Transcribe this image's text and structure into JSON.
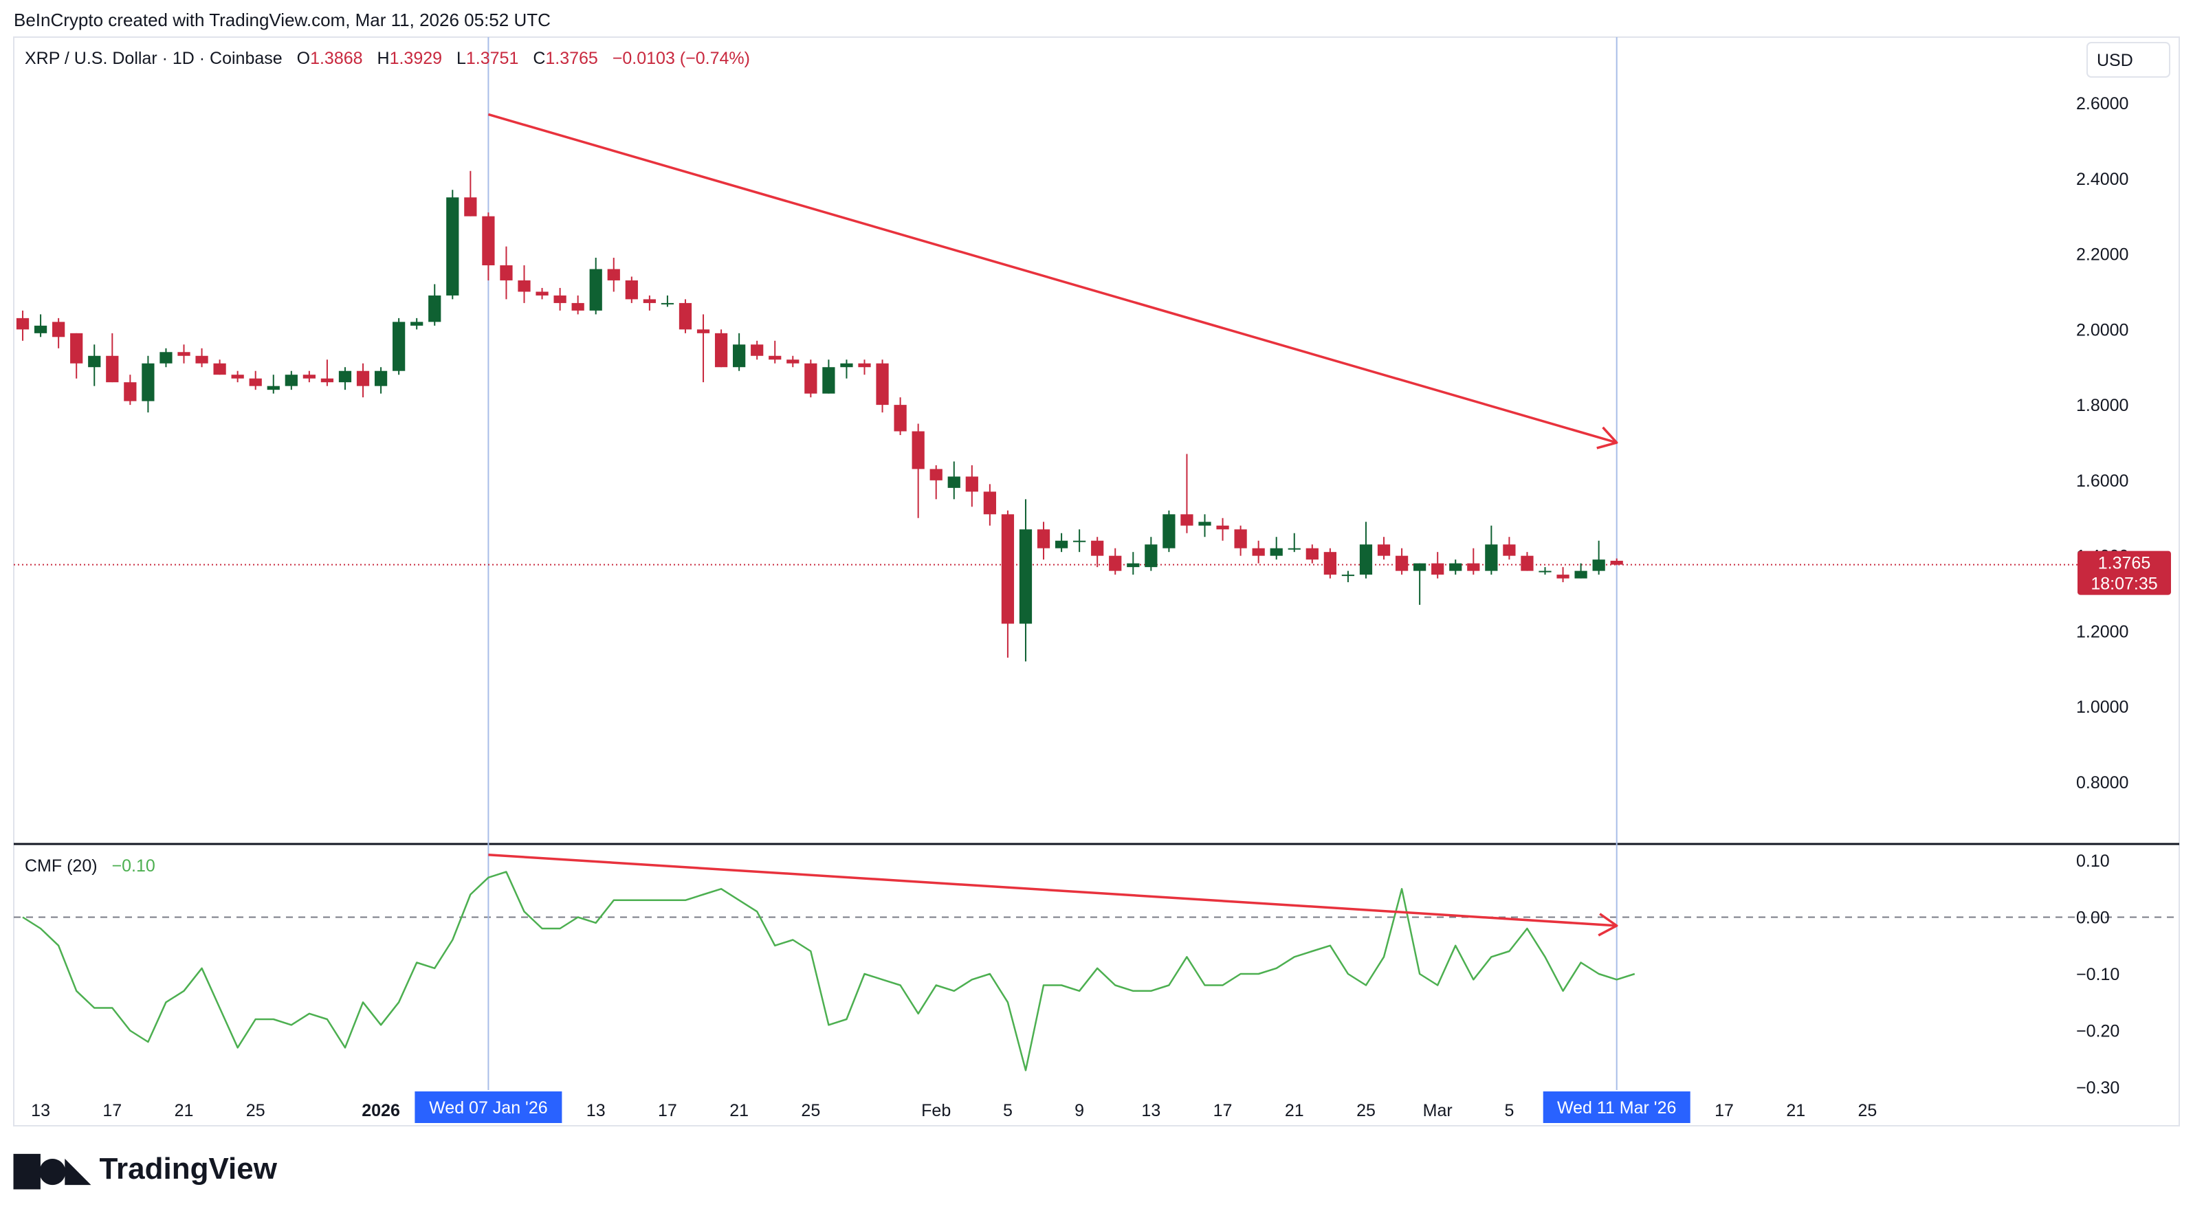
{
  "credit_line": "BeInCrypto created with TradingView.com, Mar 11, 2026 05:52 UTC",
  "brand": {
    "logo_text": "TradingView",
    "logo_icon": "tradingview-logo-icon"
  },
  "header": {
    "symbol": "XRP / U.S. Dollar · 1D · Coinbase",
    "o_label": "O",
    "o_value": "1.3868",
    "h_label": "H",
    "h_value": "1.3929",
    "l_label": "L",
    "l_value": "1.3751",
    "c_label": "C",
    "c_value": "1.3765",
    "change": "−0.0103 (−0.74%)"
  },
  "currency": "USD",
  "last_price": {
    "value": "1.3765",
    "countdown": "18:07:35"
  },
  "indicator": {
    "name": "CMF (20)",
    "value": "−0.10"
  },
  "crosshair_labels": {
    "left": "Wed 07 Jan '26",
    "right": "Wed 11 Mar '26"
  },
  "colors": {
    "up": "#0f6132",
    "down": "#c8283e",
    "trend": "#e8323d",
    "cmf": "#4caf50",
    "crosshair": "#c6d4f0",
    "date_badge": "#2962ff",
    "price_badge": "#c8283e"
  },
  "chart_data": [
    {
      "type": "candlestick",
      "title": "XRP / U.S. Dollar · 1D · Coinbase",
      "ylabel": "USD",
      "ylim": [
        0.7,
        2.7
      ],
      "y_ticks": [
        "2.6000",
        "2.4000",
        "2.2000",
        "2.0000",
        "1.8000",
        "1.6000",
        "1.4000",
        "1.2000",
        "1.0000",
        "0.8000"
      ],
      "x_ticks": [
        {
          "date": "2025-12-13",
          "label": "13"
        },
        {
          "date": "2025-12-17",
          "label": "17"
        },
        {
          "date": "2025-12-21",
          "label": "21"
        },
        {
          "date": "2025-12-25",
          "label": "25"
        },
        {
          "date": "2026-01-01",
          "label": "2026",
          "bold": true
        },
        {
          "date": "2026-01-13",
          "label": "13"
        },
        {
          "date": "2026-01-17",
          "label": "17"
        },
        {
          "date": "2026-01-21",
          "label": "21"
        },
        {
          "date": "2026-01-25",
          "label": "25"
        },
        {
          "date": "2026-02-01",
          "label": "Feb"
        },
        {
          "date": "2026-02-05",
          "label": "5"
        },
        {
          "date": "2026-02-09",
          "label": "9"
        },
        {
          "date": "2026-02-13",
          "label": "13"
        },
        {
          "date": "2026-02-17",
          "label": "17"
        },
        {
          "date": "2026-02-21",
          "label": "21"
        },
        {
          "date": "2026-02-25",
          "label": "25"
        },
        {
          "date": "2026-03-01",
          "label": "Mar"
        },
        {
          "date": "2026-03-05",
          "label": "5"
        },
        {
          "date": "2026-03-17",
          "label": "17"
        },
        {
          "date": "2026-03-21",
          "label": "21"
        },
        {
          "date": "2026-03-25",
          "label": "25"
        }
      ],
      "x_range": [
        "2025-12-12",
        "2026-04-05"
      ],
      "start_date": "2025-12-12",
      "ohlc": [
        [
          2.03,
          2.05,
          1.97,
          2.0
        ],
        [
          1.99,
          2.04,
          1.98,
          2.01
        ],
        [
          2.02,
          2.03,
          1.95,
          1.98
        ],
        [
          1.99,
          1.99,
          1.87,
          1.91
        ],
        [
          1.9,
          1.96,
          1.85,
          1.93
        ],
        [
          1.93,
          1.99,
          1.86,
          1.86
        ],
        [
          1.86,
          1.88,
          1.8,
          1.81
        ],
        [
          1.81,
          1.93,
          1.78,
          1.91
        ],
        [
          1.91,
          1.95,
          1.9,
          1.94
        ],
        [
          1.94,
          1.96,
          1.91,
          1.93
        ],
        [
          1.93,
          1.95,
          1.9,
          1.91
        ],
        [
          1.91,
          1.92,
          1.88,
          1.88
        ],
        [
          1.88,
          1.89,
          1.86,
          1.87
        ],
        [
          1.87,
          1.89,
          1.84,
          1.85
        ],
        [
          1.84,
          1.88,
          1.83,
          1.85
        ],
        [
          1.85,
          1.89,
          1.84,
          1.88
        ],
        [
          1.88,
          1.89,
          1.86,
          1.87
        ],
        [
          1.87,
          1.92,
          1.85,
          1.86
        ],
        [
          1.86,
          1.9,
          1.84,
          1.89
        ],
        [
          1.89,
          1.91,
          1.82,
          1.85
        ],
        [
          1.85,
          1.9,
          1.83,
          1.89
        ],
        [
          1.89,
          2.03,
          1.88,
          2.02
        ],
        [
          2.01,
          2.03,
          2.0,
          2.02
        ],
        [
          2.02,
          2.12,
          2.01,
          2.09
        ],
        [
          2.09,
          2.37,
          2.08,
          2.35
        ],
        [
          2.35,
          2.42,
          2.3,
          2.3
        ],
        [
          2.3,
          2.31,
          2.13,
          2.17
        ],
        [
          2.17,
          2.22,
          2.08,
          2.13
        ],
        [
          2.13,
          2.17,
          2.07,
          2.1
        ],
        [
          2.1,
          2.11,
          2.08,
          2.09
        ],
        [
          2.09,
          2.11,
          2.05,
          2.07
        ],
        [
          2.07,
          2.09,
          2.04,
          2.05
        ],
        [
          2.05,
          2.19,
          2.04,
          2.16
        ],
        [
          2.16,
          2.19,
          2.1,
          2.13
        ],
        [
          2.13,
          2.14,
          2.07,
          2.08
        ],
        [
          2.08,
          2.09,
          2.05,
          2.07
        ],
        [
          2.07,
          2.09,
          2.06,
          2.07
        ],
        [
          2.07,
          2.08,
          1.99,
          2.0
        ],
        [
          2.0,
          2.04,
          1.86,
          1.99
        ],
        [
          1.99,
          2.0,
          1.9,
          1.9
        ],
        [
          1.9,
          1.99,
          1.89,
          1.96
        ],
        [
          1.96,
          1.97,
          1.92,
          1.93
        ],
        [
          1.93,
          1.97,
          1.91,
          1.92
        ],
        [
          1.92,
          1.93,
          1.9,
          1.91
        ],
        [
          1.91,
          1.92,
          1.82,
          1.83
        ],
        [
          1.83,
          1.92,
          1.83,
          1.9
        ],
        [
          1.9,
          1.92,
          1.87,
          1.91
        ],
        [
          1.91,
          1.92,
          1.88,
          1.9
        ],
        [
          1.91,
          1.92,
          1.78,
          1.8
        ],
        [
          1.8,
          1.82,
          1.72,
          1.73
        ],
        [
          1.73,
          1.75,
          1.5,
          1.63
        ],
        [
          1.63,
          1.64,
          1.55,
          1.6
        ],
        [
          1.58,
          1.65,
          1.55,
          1.61
        ],
        [
          1.61,
          1.64,
          1.53,
          1.57
        ],
        [
          1.57,
          1.59,
          1.48,
          1.51
        ],
        [
          1.51,
          1.52,
          1.13,
          1.22
        ],
        [
          1.22,
          1.55,
          1.12,
          1.47
        ],
        [
          1.47,
          1.49,
          1.39,
          1.42
        ],
        [
          1.42,
          1.46,
          1.41,
          1.44
        ],
        [
          1.44,
          1.47,
          1.41,
          1.44
        ],
        [
          1.44,
          1.45,
          1.37,
          1.4
        ],
        [
          1.4,
          1.42,
          1.35,
          1.36
        ],
        [
          1.37,
          1.41,
          1.35,
          1.38
        ],
        [
          1.37,
          1.45,
          1.36,
          1.43
        ],
        [
          1.42,
          1.52,
          1.41,
          1.51
        ],
        [
          1.51,
          1.67,
          1.46,
          1.48
        ],
        [
          1.48,
          1.51,
          1.45,
          1.49
        ],
        [
          1.48,
          1.5,
          1.44,
          1.47
        ],
        [
          1.47,
          1.48,
          1.4,
          1.42
        ],
        [
          1.42,
          1.44,
          1.38,
          1.4
        ],
        [
          1.4,
          1.45,
          1.39,
          1.42
        ],
        [
          1.42,
          1.46,
          1.41,
          1.42
        ],
        [
          1.42,
          1.43,
          1.38,
          1.39
        ],
        [
          1.41,
          1.42,
          1.34,
          1.35
        ],
        [
          1.35,
          1.36,
          1.33,
          1.35
        ],
        [
          1.35,
          1.49,
          1.34,
          1.43
        ],
        [
          1.43,
          1.45,
          1.39,
          1.4
        ],
        [
          1.4,
          1.42,
          1.35,
          1.36
        ],
        [
          1.36,
          1.38,
          1.27,
          1.38
        ],
        [
          1.38,
          1.41,
          1.34,
          1.35
        ],
        [
          1.36,
          1.39,
          1.35,
          1.38
        ],
        [
          1.38,
          1.42,
          1.35,
          1.36
        ],
        [
          1.36,
          1.48,
          1.35,
          1.43
        ],
        [
          1.43,
          1.45,
          1.39,
          1.4
        ],
        [
          1.4,
          1.41,
          1.36,
          1.36
        ],
        [
          1.36,
          1.37,
          1.35,
          1.36
        ],
        [
          1.35,
          1.37,
          1.33,
          1.34
        ],
        [
          1.34,
          1.38,
          1.34,
          1.36
        ],
        [
          1.36,
          1.44,
          1.35,
          1.39
        ],
        [
          1.3868,
          1.3929,
          1.3751,
          1.3765
        ]
      ],
      "last_price_line": 1.3765,
      "trendline": {
        "from": [
          "2026-01-07",
          2.57
        ],
        "to": [
          "2026-03-11",
          1.7
        ]
      }
    },
    {
      "type": "line",
      "title": "CMF (20)",
      "ylim": [
        -0.3,
        0.1
      ],
      "y_ticks": [
        "0.10",
        "0.00",
        "−0.10",
        "−0.20",
        "−0.30"
      ],
      "zero_line": 0.0,
      "values": [
        0.0,
        -0.02,
        -0.05,
        -0.13,
        -0.16,
        -0.16,
        -0.2,
        -0.22,
        -0.15,
        -0.13,
        -0.09,
        -0.16,
        -0.23,
        -0.18,
        -0.18,
        -0.19,
        -0.17,
        -0.18,
        -0.23,
        -0.15,
        -0.19,
        -0.15,
        -0.08,
        -0.09,
        -0.04,
        0.04,
        0.07,
        0.08,
        0.01,
        -0.02,
        -0.02,
        0.0,
        -0.01,
        0.03,
        0.03,
        0.03,
        0.03,
        0.03,
        0.04,
        0.05,
        0.03,
        0.01,
        -0.05,
        -0.04,
        -0.06,
        -0.19,
        -0.18,
        -0.1,
        -0.11,
        -0.12,
        -0.17,
        -0.12,
        -0.13,
        -0.11,
        -0.1,
        -0.15,
        -0.27,
        -0.12,
        -0.12,
        -0.13,
        -0.09,
        -0.12,
        -0.13,
        -0.13,
        -0.12,
        -0.07,
        -0.12,
        -0.12,
        -0.1,
        -0.1,
        -0.09,
        -0.07,
        -0.06,
        -0.05,
        -0.1,
        -0.12,
        -0.07,
        0.05,
        -0.1,
        -0.12,
        -0.05,
        -0.11,
        -0.07,
        -0.06,
        -0.02,
        -0.07,
        -0.13,
        -0.08,
        -0.1,
        -0.11,
        -0.1
      ],
      "trendline": {
        "from": [
          "2026-01-07",
          0.11
        ],
        "to": [
          "2026-03-11",
          -0.015
        ]
      }
    }
  ]
}
